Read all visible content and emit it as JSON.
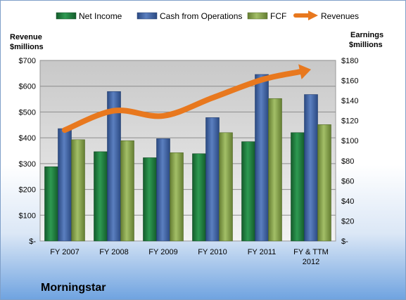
{
  "company": "Morningstar",
  "chart_data": {
    "type": "bar",
    "categories": [
      "FY 2007",
      "FY 2008",
      "FY 2009",
      "FY 2010",
      "FY 2011",
      "FY & TTM 2012"
    ],
    "series": [
      {
        "name": "Net Income",
        "axis": "right",
        "color": "#1e7a3c",
        "values": [
          74,
          89,
          83,
          87,
          99,
          108
        ]
      },
      {
        "name": "Cash from Operations",
        "axis": "right",
        "color": "#3a5e9e",
        "values": [
          112,
          149,
          102,
          123,
          166,
          146
        ]
      },
      {
        "name": "FCF",
        "axis": "right",
        "color": "#7e9a44",
        "values": [
          101,
          100,
          88,
          108,
          142,
          116
        ]
      },
      {
        "name": "Revenues",
        "axis": "left",
        "type": "line",
        "color": "#e8781e",
        "values": [
          430,
          505,
          485,
          555,
          625,
          665
        ]
      }
    ],
    "y_left": {
      "label_line1": "Revenue",
      "label_line2": "$millions",
      "range": [
        0,
        700
      ],
      "ticks": [
        "$-",
        "$100",
        "$200",
        "$300",
        "$400",
        "$500",
        "$600",
        "$700"
      ]
    },
    "y_right": {
      "label_line1": "Earnings",
      "label_line2": "$millions",
      "range": [
        0,
        180
      ],
      "ticks": [
        "$-",
        "$20",
        "$40",
        "$60",
        "$80",
        "$100",
        "$120",
        "$140",
        "$160",
        "$180"
      ]
    },
    "grid": true,
    "legend": "top"
  }
}
